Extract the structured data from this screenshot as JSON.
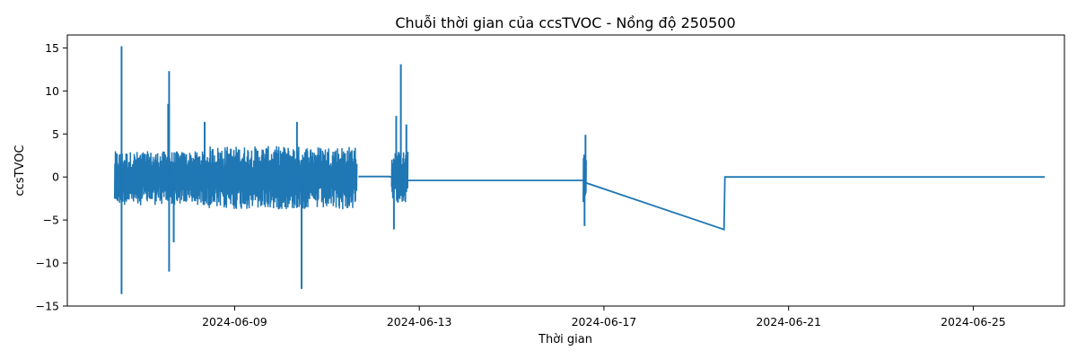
{
  "chart_data": {
    "type": "line",
    "title": "Chuỗi thời gian của ccsTVOC - Nồng độ 250500",
    "xlabel": "Thời gian",
    "ylabel": "ccsTVOC",
    "x_tick_labels": [
      "2024-06-09",
      "2024-06-13",
      "2024-06-17",
      "2024-06-21",
      "2024-06-25"
    ],
    "x_tick_days": [
      9,
      13,
      17,
      21,
      25
    ],
    "xlim_days": [
      5.375,
      26.975
    ],
    "y_ticks": [
      15,
      10,
      5,
      0,
      -5,
      -10,
      -15
    ],
    "y_tick_labels": [
      "15",
      "10",
      "5",
      "0",
      "−5",
      "−10",
      "−15"
    ],
    "ylim": [
      -15,
      16.5
    ],
    "grid": false,
    "series_color": "#1f77b4",
    "series": [
      {
        "name": "ccsTVOC",
        "noise_segments": [
          {
            "start_day": 6.4,
            "end_day": 8.45,
            "amp_low": -3.3,
            "amp_high": 3.0
          },
          {
            "start_day": 8.45,
            "end_day": 11.65,
            "amp_low": -3.8,
            "amp_high": 3.6
          },
          {
            "start_day": 12.4,
            "end_day": 12.75,
            "amp_low": -3.0,
            "amp_high": 3.0
          },
          {
            "start_day": 16.55,
            "end_day": 16.62,
            "amp_low": -3.0,
            "amp_high": 3.0
          }
        ],
        "spikes": [
          {
            "day": 6.55,
            "value": 15.2
          },
          {
            "day": 6.55,
            "value": -13.6
          },
          {
            "day": 7.58,
            "value": 12.3
          },
          {
            "day": 7.58,
            "value": -11.0
          },
          {
            "day": 7.56,
            "value": 8.5
          },
          {
            "day": 7.68,
            "value": -7.6
          },
          {
            "day": 10.45,
            "value": -13.0
          },
          {
            "day": 10.35,
            "value": 6.4
          },
          {
            "day": 8.35,
            "value": 6.4
          },
          {
            "day": 12.5,
            "value": 7.1
          },
          {
            "day": 12.6,
            "value": 13.1
          },
          {
            "day": 12.45,
            "value": -6.1
          },
          {
            "day": 12.72,
            "value": 6.1
          },
          {
            "day": 16.6,
            "value": 4.9
          },
          {
            "day": 16.58,
            "value": -5.7
          }
        ],
        "flat_points": [
          {
            "day": 11.68,
            "value": 0.05
          },
          {
            "day": 12.35,
            "value": 0.05
          },
          {
            "day": 12.75,
            "value": -0.4
          },
          {
            "day": 16.55,
            "value": -0.4
          },
          {
            "day": 16.62,
            "value": -0.7
          },
          {
            "day": 19.6,
            "value": -6.1
          },
          {
            "day": 19.62,
            "value": 0.0
          },
          {
            "day": 26.55,
            "value": 0.0
          }
        ]
      }
    ]
  }
}
